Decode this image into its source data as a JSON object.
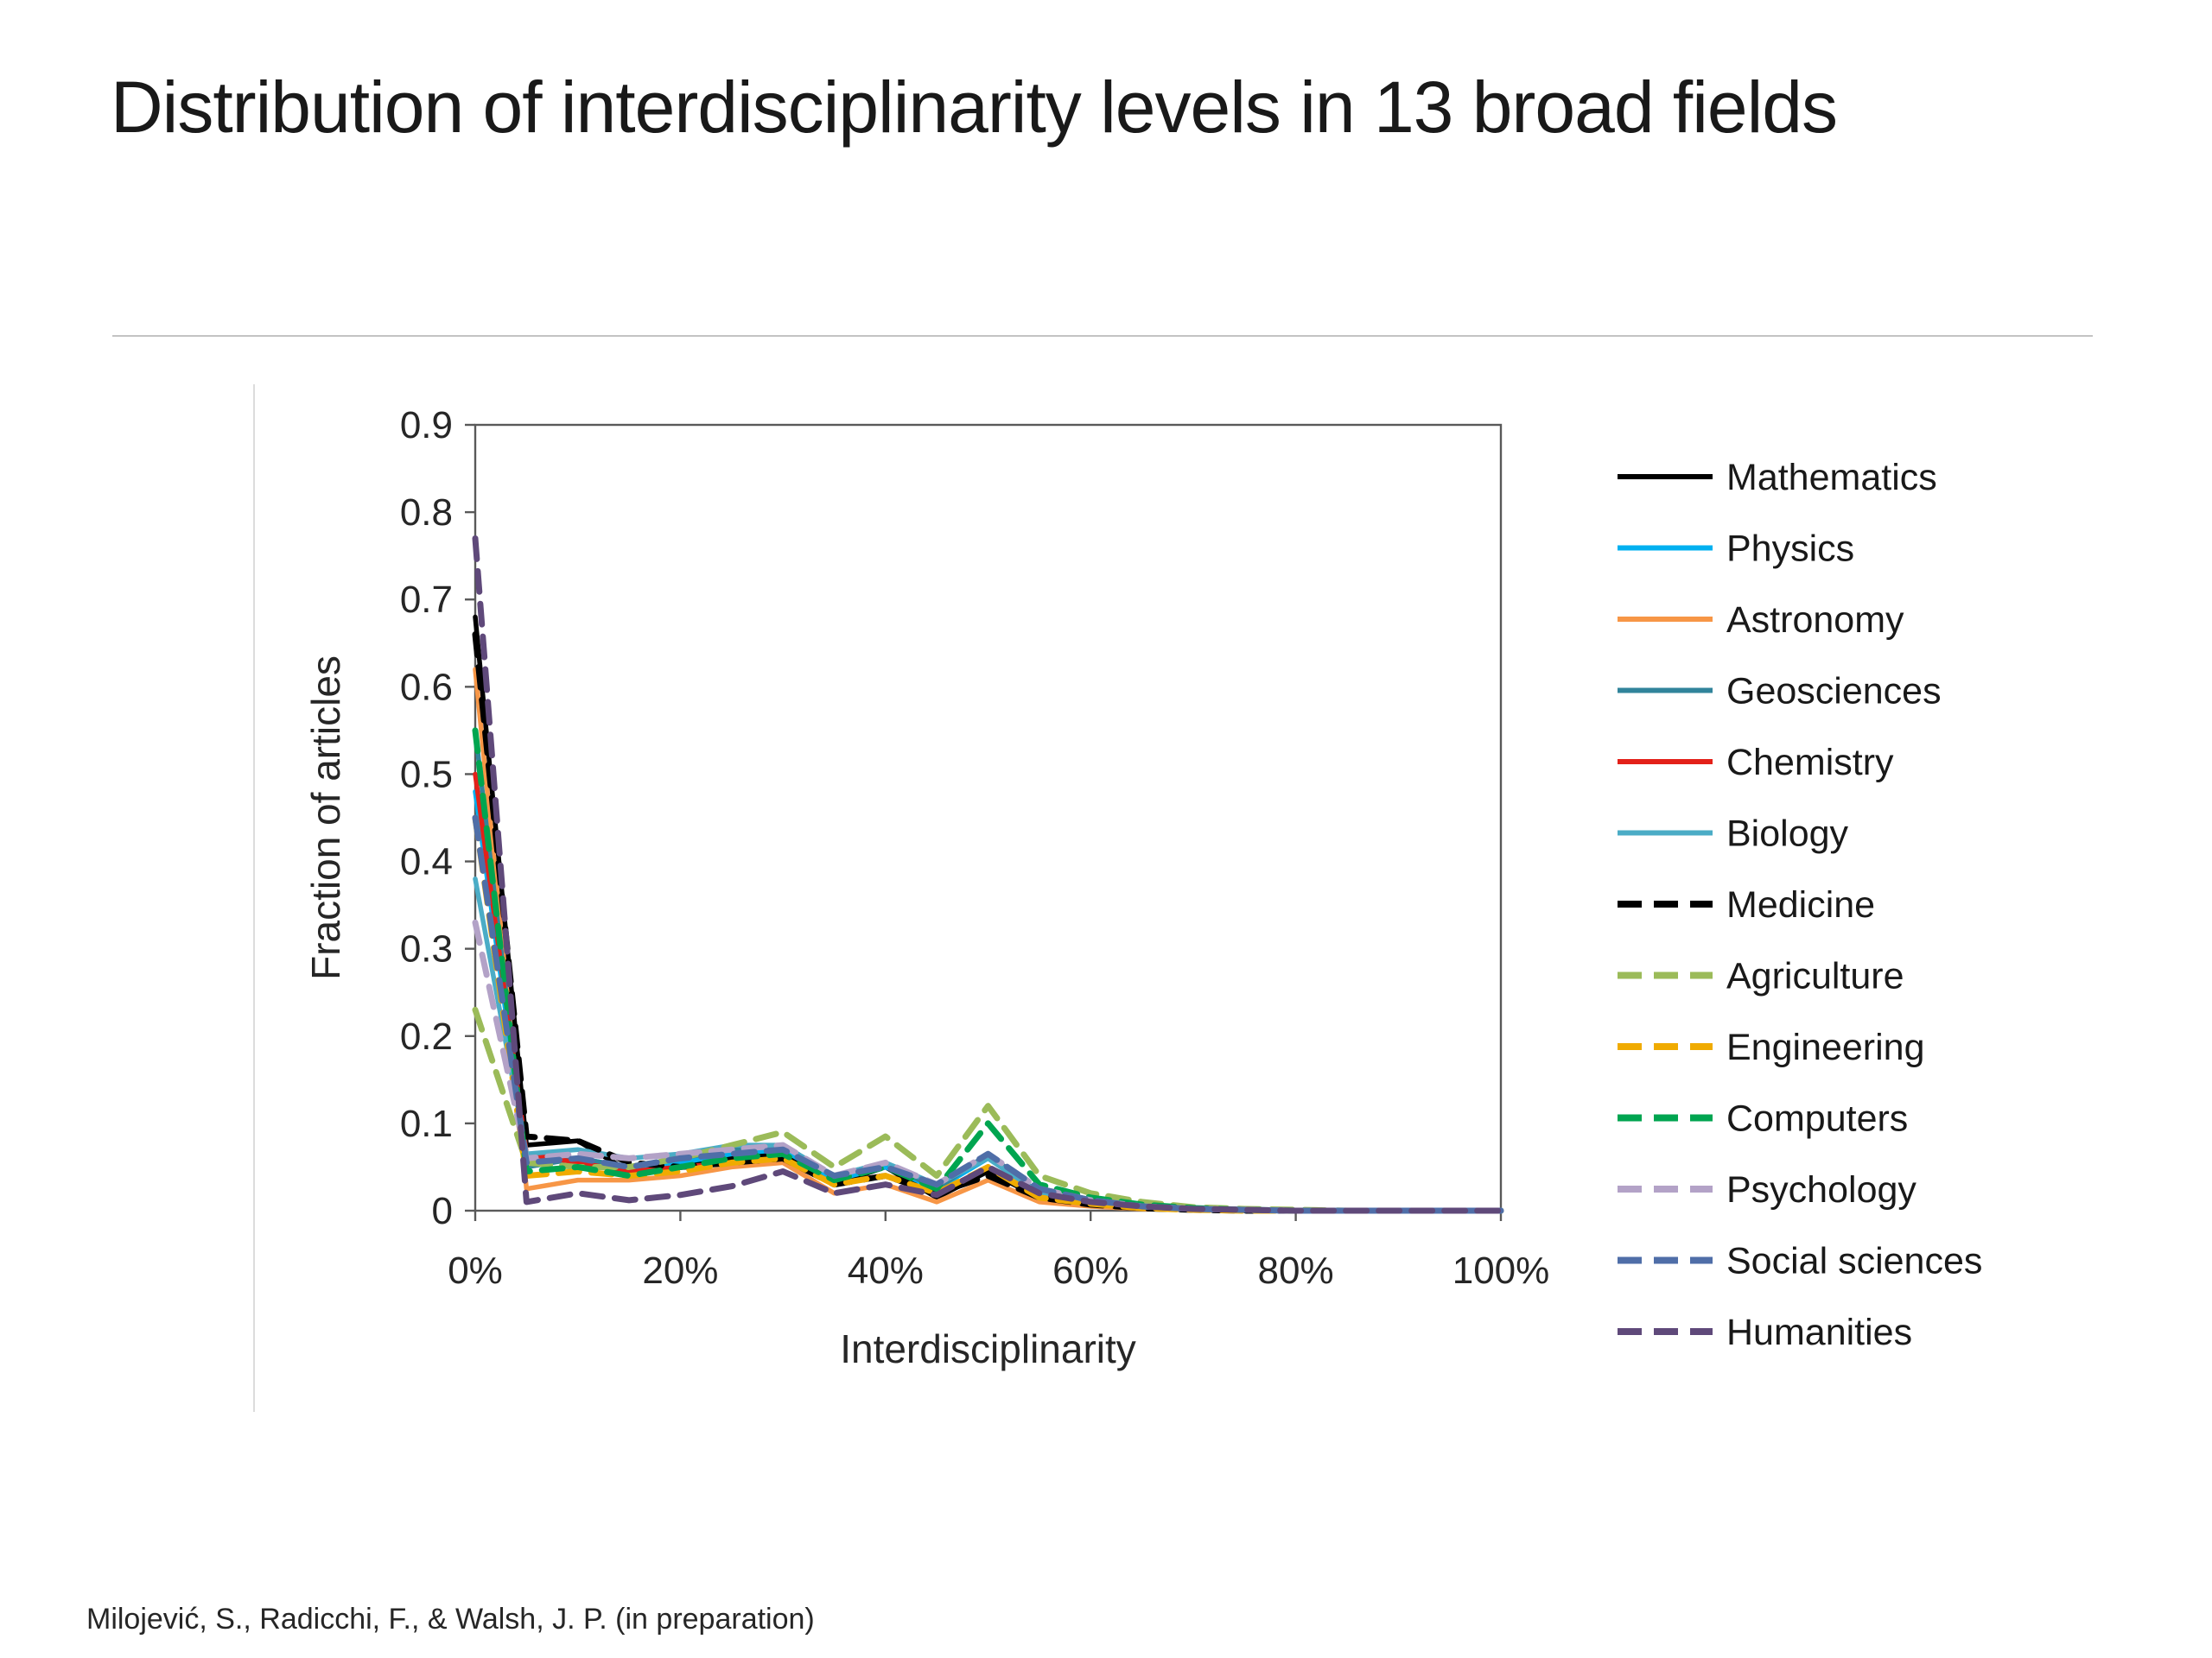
{
  "slide": {
    "title": "Distribution of interdisciplinarity levels in 13 broad fields",
    "citation": "Milojević, S., Radicchi, F., & Walsh, J. P.  (in preparation)"
  },
  "chart_data": {
    "type": "line",
    "title": "",
    "xlabel": "Interdisciplinarity",
    "ylabel": "Fraction of articles",
    "xlim": [
      0,
      100
    ],
    "ylim": [
      0,
      0.9
    ],
    "xticks": [
      0,
      20,
      40,
      60,
      80,
      100
    ],
    "xtick_suffix": "%",
    "yticks": [
      0,
      0.1,
      0.2,
      0.3,
      0.4,
      0.5,
      0.6,
      0.7,
      0.8,
      0.9
    ],
    "grid": false,
    "legend_position": "right",
    "x": [
      0,
      5,
      10,
      15,
      20,
      25,
      30,
      35,
      40,
      45,
      50,
      55,
      60,
      65,
      70,
      75,
      80,
      85,
      90,
      95,
      100
    ],
    "series": [
      {
        "name": "Mathematics",
        "color": "#000000",
        "line_style": "solid",
        "values": [
          0.68,
          0.075,
          0.08,
          0.045,
          0.05,
          0.06,
          0.065,
          0.03,
          0.05,
          0.015,
          0.045,
          0.015,
          0.008,
          0.003,
          0.002,
          0.001,
          0,
          0,
          0,
          0,
          0
        ]
      },
      {
        "name": "Physics",
        "color": "#00B0F0",
        "line_style": "solid",
        "values": [
          0.48,
          0.055,
          0.06,
          0.05,
          0.055,
          0.065,
          0.07,
          0.035,
          0.05,
          0.025,
          0.06,
          0.02,
          0.01,
          0.004,
          0.002,
          0.001,
          0,
          0,
          0,
          0,
          0
        ]
      },
      {
        "name": "Astronomy",
        "color": "#F79646",
        "line_style": "solid",
        "values": [
          0.62,
          0.025,
          0.035,
          0.035,
          0.04,
          0.05,
          0.055,
          0.02,
          0.03,
          0.01,
          0.035,
          0.01,
          0.005,
          0.002,
          0.001,
          0,
          0,
          0,
          0,
          0,
          0
        ]
      },
      {
        "name": "Geosciences",
        "color": "#31849B",
        "line_style": "solid",
        "values": [
          0.55,
          0.05,
          0.06,
          0.05,
          0.06,
          0.07,
          0.075,
          0.04,
          0.055,
          0.025,
          0.065,
          0.02,
          0.01,
          0.004,
          0.002,
          0.001,
          0,
          0,
          0,
          0,
          0
        ]
      },
      {
        "name": "Chemistry",
        "color": "#E32119",
        "line_style": "solid",
        "values": [
          0.5,
          0.065,
          0.055,
          0.045,
          0.05,
          0.055,
          0.06,
          0.03,
          0.04,
          0.02,
          0.05,
          0.015,
          0.008,
          0.003,
          0.001,
          0,
          0,
          0,
          0,
          0,
          0
        ]
      },
      {
        "name": "Biology",
        "color": "#4BACC6",
        "line_style": "solid",
        "values": [
          0.38,
          0.065,
          0.07,
          0.06,
          0.065,
          0.075,
          0.075,
          0.04,
          0.055,
          0.03,
          0.06,
          0.02,
          0.01,
          0.004,
          0.002,
          0.001,
          0,
          0,
          0,
          0,
          0
        ]
      },
      {
        "name": "Medicine",
        "color": "#000000",
        "line_style": "dashed",
        "values": [
          0.66,
          0.085,
          0.08,
          0.055,
          0.05,
          0.055,
          0.06,
          0.03,
          0.04,
          0.02,
          0.04,
          0.015,
          0.007,
          0.003,
          0.001,
          0,
          0,
          0,
          0,
          0,
          0
        ]
      },
      {
        "name": "Agriculture",
        "color": "#9BBB59",
        "line_style": "dashed",
        "values": [
          0.23,
          0.055,
          0.05,
          0.05,
          0.06,
          0.075,
          0.09,
          0.05,
          0.085,
          0.04,
          0.12,
          0.04,
          0.02,
          0.01,
          0.004,
          0.002,
          0.001,
          0,
          0,
          0,
          0
        ]
      },
      {
        "name": "Engineering",
        "color": "#F0AB00",
        "line_style": "dashed",
        "values": [
          0.45,
          0.04,
          0.045,
          0.04,
          0.045,
          0.055,
          0.06,
          0.03,
          0.04,
          0.02,
          0.05,
          0.015,
          0.008,
          0.003,
          0.001,
          0,
          0,
          0,
          0,
          0,
          0
        ]
      },
      {
        "name": "Computers",
        "color": "#00A550",
        "line_style": "dashed",
        "values": [
          0.55,
          0.045,
          0.05,
          0.04,
          0.05,
          0.06,
          0.065,
          0.035,
          0.05,
          0.025,
          0.1,
          0.03,
          0.015,
          0.007,
          0.003,
          0.001,
          0,
          0,
          0,
          0,
          0
        ]
      },
      {
        "name": "Psychology",
        "color": "#B3A2C7",
        "line_style": "dashed",
        "values": [
          0.33,
          0.06,
          0.065,
          0.06,
          0.065,
          0.07,
          0.075,
          0.04,
          0.055,
          0.03,
          0.065,
          0.025,
          0.012,
          0.005,
          0.002,
          0.001,
          0,
          0,
          0,
          0,
          0
        ]
      },
      {
        "name": "Social sciences",
        "color": "#4F6EA8",
        "line_style": "dashed",
        "values": [
          0.45,
          0.055,
          0.06,
          0.05,
          0.06,
          0.065,
          0.07,
          0.04,
          0.05,
          0.03,
          0.065,
          0.025,
          0.012,
          0.005,
          0.002,
          0.001,
          0,
          0,
          0,
          0,
          0
        ]
      },
      {
        "name": "Humanities",
        "color": "#5F497A",
        "line_style": "dashed",
        "values": [
          0.77,
          0.01,
          0.02,
          0.012,
          0.018,
          0.028,
          0.045,
          0.02,
          0.03,
          0.018,
          0.05,
          0.02,
          0.01,
          0.005,
          0.002,
          0.001,
          0,
          0,
          0,
          0,
          0
        ]
      }
    ]
  }
}
